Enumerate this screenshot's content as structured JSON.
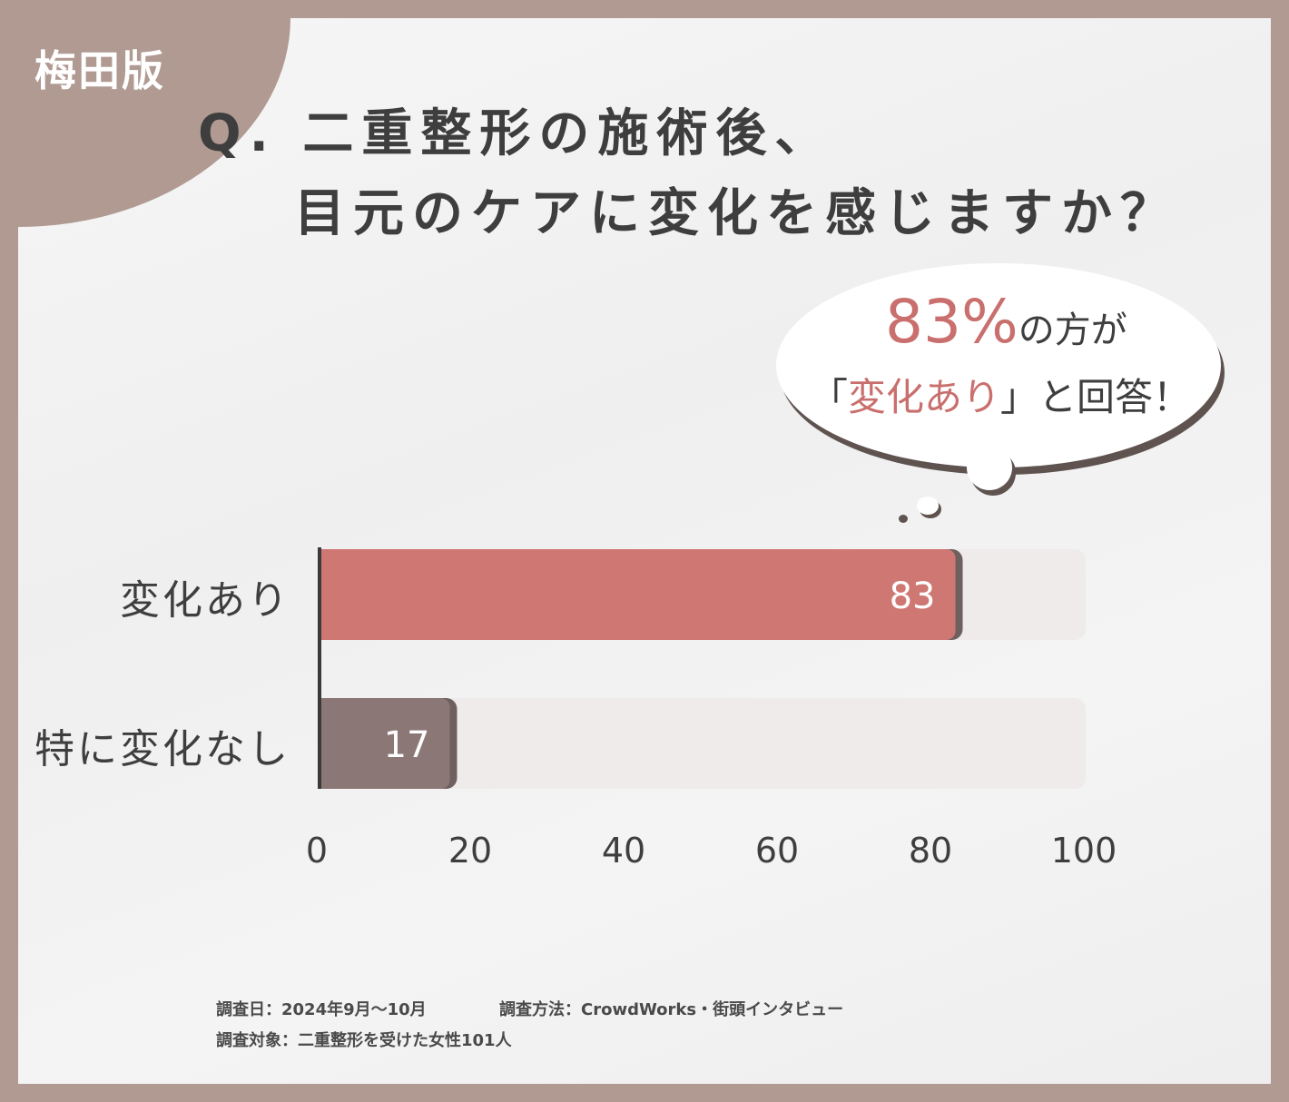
{
  "badge": {
    "label": "梅田版"
  },
  "title": {
    "line1": "Q. 二重整形の施術後、",
    "line2": "目元のケアに変化を感じますか？"
  },
  "callout": {
    "percent": "83%",
    "line1_suffix": "の方が",
    "line2_open": "「",
    "line2_accent": "変化あり",
    "line2_close": "」と回答！"
  },
  "footer": {
    "date": "調査日：2024年9月～10月",
    "method": "調査方法：CrowdWorks・街頭インタビュー",
    "target": "調査対象：二重整形を受けた女性101人"
  },
  "colors": {
    "frame": "#b09a92",
    "accent_bar": "#cf7773",
    "secondary_bar": "#8b7876",
    "track": "#eeebea"
  },
  "chart_data": {
    "type": "bar",
    "orientation": "horizontal",
    "categories": [
      "変化あり",
      "特に変化なし"
    ],
    "values": [
      83,
      17
    ],
    "value_labels": [
      "83",
      "17"
    ],
    "xlim": [
      0,
      100
    ],
    "xticks": [
      "0",
      "20",
      "40",
      "60",
      "80",
      "100"
    ],
    "grid": false,
    "title": "",
    "xlabel": "",
    "ylabel": ""
  }
}
